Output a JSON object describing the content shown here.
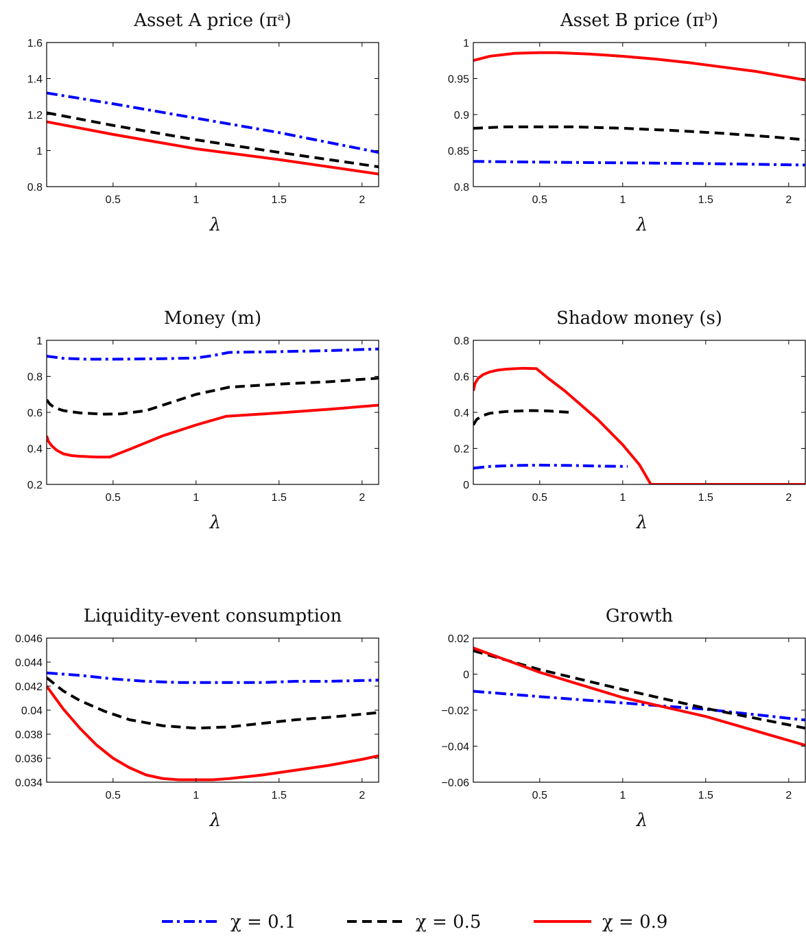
{
  "colors": {
    "chi_0.1": "#0000ff",
    "chi_0.5": "#000000",
    "chi_0.9": "#ff0000"
  },
  "legend": [
    {
      "label": "χ = 0.1",
      "style": "dashdot",
      "color": "#0000ff"
    },
    {
      "label": "χ = 0.5",
      "style": "dashed",
      "color": "#000000"
    },
    {
      "label": "χ = 0.9",
      "style": "solid",
      "color": "#ff0000"
    }
  ],
  "chart_data": [
    {
      "type": "line",
      "title": "Asset A price (πᵃ)",
      "xlabel": "λ",
      "xlim": [
        0.1,
        2.1
      ],
      "ylim": [
        0.8,
        1.6
      ],
      "xticks": [
        0.5,
        1,
        1.5,
        2
      ],
      "yticks": [
        0.8,
        1,
        1.2,
        1.4,
        1.6
      ],
      "xtick_labels": [
        "0.5",
        "1",
        "1.5",
        "2"
      ],
      "ytick_labels": [
        "0.8",
        "1",
        "1.2",
        "1.4",
        "1.6"
      ],
      "series": [
        {
          "key": "chi_0.1",
          "style": "dashdot",
          "x": [
            0.1,
            0.5,
            1.0,
            1.5,
            2.1
          ],
          "y": [
            1.32,
            1.26,
            1.18,
            1.1,
            0.99
          ]
        },
        {
          "key": "chi_0.5",
          "style": "dashed",
          "x": [
            0.1,
            0.5,
            1.0,
            1.5,
            2.1
          ],
          "y": [
            1.21,
            1.14,
            1.06,
            0.99,
            0.91
          ]
        },
        {
          "key": "chi_0.9",
          "style": "solid",
          "x": [
            0.1,
            0.5,
            1.0,
            1.5,
            2.1
          ],
          "y": [
            1.16,
            1.09,
            1.01,
            0.95,
            0.87
          ]
        }
      ]
    },
    {
      "type": "line",
      "title": "Asset B price (πᵇ)",
      "xlabel": "λ",
      "xlim": [
        0.1,
        2.1
      ],
      "ylim": [
        0.8,
        1.0
      ],
      "xticks": [
        0.5,
        1,
        1.5,
        2
      ],
      "yticks": [
        0.8,
        0.85,
        0.9,
        0.95,
        1.0
      ],
      "xtick_labels": [
        "0.5",
        "1",
        "1.5",
        "2"
      ],
      "ytick_labels": [
        "0.8",
        "0.85",
        "0.9",
        "0.95",
        "1"
      ],
      "series": [
        {
          "key": "chi_0.1",
          "style": "dashdot",
          "x": [
            0.1,
            0.5,
            1.0,
            1.5,
            2.1
          ],
          "y": [
            0.835,
            0.834,
            0.833,
            0.832,
            0.83
          ]
        },
        {
          "key": "chi_0.5",
          "style": "dashed",
          "x": [
            0.1,
            0.3,
            0.5,
            0.7,
            1.0,
            1.3,
            1.6,
            1.9,
            2.1
          ],
          "y": [
            0.881,
            0.883,
            0.883,
            0.883,
            0.881,
            0.878,
            0.874,
            0.869,
            0.865
          ]
        },
        {
          "key": "chi_0.9",
          "style": "solid",
          "x": [
            0.1,
            0.2,
            0.35,
            0.5,
            0.6,
            0.8,
            1.0,
            1.2,
            1.4,
            1.6,
            1.8,
            2.0,
            2.1
          ],
          "y": [
            0.975,
            0.981,
            0.985,
            0.986,
            0.986,
            0.984,
            0.981,
            0.977,
            0.972,
            0.966,
            0.96,
            0.952,
            0.948
          ]
        }
      ]
    },
    {
      "type": "line",
      "title": "Money (m)",
      "xlabel": "λ",
      "xlim": [
        0.1,
        2.1
      ],
      "ylim": [
        0.2,
        1.0
      ],
      "xticks": [
        0.5,
        1,
        1.5,
        2
      ],
      "yticks": [
        0.2,
        0.4,
        0.6,
        0.8,
        1.0
      ],
      "xtick_labels": [
        "0.5",
        "1",
        "1.5",
        "2"
      ],
      "ytick_labels": [
        "0.2",
        "0.4",
        "0.6",
        "0.8",
        "1"
      ],
      "series": [
        {
          "key": "chi_0.1",
          "style": "dashdot",
          "x": [
            0.1,
            0.2,
            0.35,
            0.5,
            0.8,
            1.0,
            1.1,
            1.2,
            1.5,
            1.8,
            2.1
          ],
          "y": [
            0.912,
            0.9,
            0.895,
            0.895,
            0.898,
            0.902,
            0.915,
            0.933,
            0.937,
            0.943,
            0.952
          ]
        },
        {
          "key": "chi_0.5",
          "style": "dashed",
          "x": [
            0.1,
            0.12,
            0.15,
            0.2,
            0.3,
            0.45,
            0.55,
            0.7,
            0.9,
            1.0,
            1.2,
            1.5,
            1.8,
            2.1
          ],
          "y": [
            0.67,
            0.645,
            0.625,
            0.61,
            0.597,
            0.59,
            0.592,
            0.61,
            0.67,
            0.7,
            0.74,
            0.757,
            0.77,
            0.79
          ]
        },
        {
          "key": "chi_0.9",
          "style": "solid",
          "x": [
            0.1,
            0.11,
            0.13,
            0.16,
            0.2,
            0.25,
            0.3,
            0.4,
            0.48,
            0.6,
            0.8,
            1.0,
            1.18,
            1.5,
            1.8,
            2.1
          ],
          "y": [
            0.47,
            0.44,
            0.415,
            0.39,
            0.37,
            0.36,
            0.356,
            0.352,
            0.352,
            0.395,
            0.47,
            0.53,
            0.578,
            0.597,
            0.617,
            0.64
          ]
        }
      ]
    },
    {
      "type": "line",
      "title": "Shadow money (s)",
      "xlabel": "λ",
      "xlim": [
        0.1,
        2.1
      ],
      "ylim": [
        0,
        0.8
      ],
      "xticks": [
        0.5,
        1,
        1.5,
        2
      ],
      "yticks": [
        0,
        0.2,
        0.4,
        0.6,
        0.8
      ],
      "xtick_labels": [
        "0.5",
        "1",
        "1.5",
        "2"
      ],
      "ytick_labels": [
        "0",
        "0.2",
        "0.4",
        "0.6",
        "0.8"
      ],
      "series": [
        {
          "key": "chi_0.1",
          "style": "dashdot",
          "x": [
            0.1,
            0.2,
            0.35,
            0.5,
            0.7,
            0.9,
            1.03
          ],
          "y": [
            0.09,
            0.1,
            0.105,
            0.107,
            0.105,
            0.101,
            0.1
          ]
        },
        {
          "key": "chi_0.5",
          "style": "dashed",
          "x": [
            0.1,
            0.12,
            0.15,
            0.2,
            0.3,
            0.45,
            0.55,
            0.68
          ],
          "y": [
            0.33,
            0.36,
            0.38,
            0.395,
            0.405,
            0.41,
            0.408,
            0.4
          ]
        },
        {
          "key": "chi_0.9",
          "style": "solid",
          "x": [
            0.1,
            0.11,
            0.13,
            0.16,
            0.2,
            0.25,
            0.3,
            0.4,
            0.48,
            0.55,
            0.65,
            0.75,
            0.85,
            1.0,
            1.1,
            1.17,
            1.5,
            2.1
          ],
          "y": [
            0.52,
            0.56,
            0.59,
            0.61,
            0.625,
            0.635,
            0.64,
            0.645,
            0.643,
            0.59,
            0.52,
            0.44,
            0.36,
            0.22,
            0.11,
            0.0,
            0.0,
            0.0
          ]
        }
      ]
    },
    {
      "type": "line",
      "title": "Liquidity-event consumption",
      "xlabel": "λ",
      "xlim": [
        0.1,
        2.1
      ],
      "ylim": [
        0.034,
        0.046
      ],
      "xticks": [
        0.5,
        1,
        1.5,
        2
      ],
      "yticks": [
        0.034,
        0.036,
        0.038,
        0.04,
        0.042,
        0.044,
        0.046
      ],
      "xtick_labels": [
        "0.5",
        "1",
        "1.5",
        "2"
      ],
      "ytick_labels": [
        "0.034",
        "0.036",
        "0.038",
        "0.04",
        "0.042",
        "0.044",
        "0.046"
      ],
      "series": [
        {
          "key": "chi_0.1",
          "style": "dashdot",
          "x": [
            0.1,
            0.3,
            0.5,
            0.7,
            0.9,
            1.0,
            1.2,
            1.4,
            1.6,
            1.8,
            2.1
          ],
          "y": [
            0.0431,
            0.0429,
            0.0426,
            0.0424,
            0.0423,
            0.0423,
            0.0423,
            0.0423,
            0.0424,
            0.0424,
            0.0425
          ]
        },
        {
          "key": "chi_0.5",
          "style": "dashed",
          "x": [
            0.1,
            0.2,
            0.3,
            0.45,
            0.6,
            0.8,
            1.0,
            1.2,
            1.4,
            1.6,
            1.8,
            2.1
          ],
          "y": [
            0.0427,
            0.0416,
            0.0408,
            0.0399,
            0.0392,
            0.0387,
            0.0385,
            0.0386,
            0.0389,
            0.0392,
            0.0394,
            0.0398
          ]
        },
        {
          "key": "chi_0.9",
          "style": "solid",
          "x": [
            0.1,
            0.2,
            0.3,
            0.4,
            0.5,
            0.6,
            0.7,
            0.8,
            0.9,
            1.0,
            1.1,
            1.2,
            1.4,
            1.6,
            1.8,
            2.0,
            2.1
          ],
          "y": [
            0.042,
            0.0401,
            0.0385,
            0.0371,
            0.036,
            0.0352,
            0.0346,
            0.0343,
            0.0342,
            0.0342,
            0.0342,
            0.0343,
            0.0346,
            0.035,
            0.0354,
            0.0359,
            0.0362
          ]
        }
      ]
    },
    {
      "type": "line",
      "title": "Growth",
      "xlabel": "λ",
      "xlim": [
        0.1,
        2.1
      ],
      "ylim": [
        -0.06,
        0.02
      ],
      "xticks": [
        0.5,
        1,
        1.5,
        2
      ],
      "yticks": [
        -0.06,
        -0.04,
        -0.02,
        0,
        0.02
      ],
      "xtick_labels": [
        "0.5",
        "1",
        "1.5",
        "2"
      ],
      "ytick_labels": [
        "−0.06",
        "−0.04",
        "−0.02",
        "0",
        "0.02"
      ],
      "series": [
        {
          "key": "chi_0.1",
          "style": "dashdot",
          "x": [
            0.1,
            0.5,
            1.0,
            1.5,
            2.1
          ],
          "y": [
            -0.0095,
            -0.0125,
            -0.016,
            -0.0195,
            -0.0255
          ]
        },
        {
          "key": "chi_0.5",
          "style": "dashed",
          "x": [
            0.1,
            0.5,
            1.0,
            1.5,
            2.1
          ],
          "y": [
            0.013,
            0.0025,
            -0.0085,
            -0.019,
            -0.03
          ]
        },
        {
          "key": "chi_0.9",
          "style": "solid",
          "x": [
            0.1,
            0.5,
            1.0,
            1.5,
            2.1
          ],
          "y": [
            0.0145,
            0.001,
            -0.013,
            -0.0235,
            -0.0395
          ]
        }
      ]
    }
  ]
}
